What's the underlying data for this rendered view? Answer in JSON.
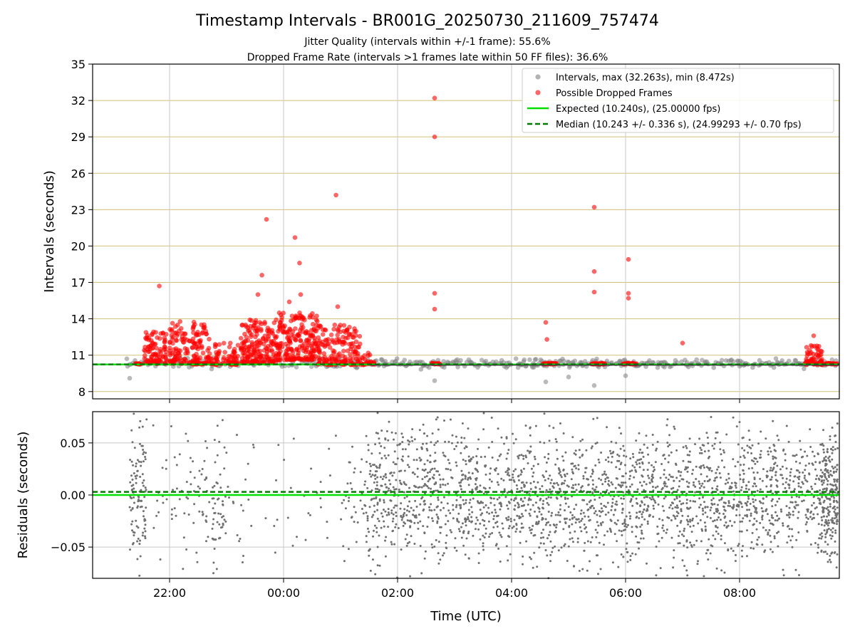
{
  "chart_data": [
    {
      "type": "scatter",
      "title": "Timestamp Intervals - BR001G_20250730_211609_757474",
      "subtitle_lines": [
        "Jitter Quality (intervals within +/-1 frame): 55.6%",
        "Dropped Frame Rate (intervals >1 frames late within 50 FF files): 36.6%"
      ],
      "xlabel": "",
      "ylabel": "Intervals (seconds)",
      "ylim": [
        7.4,
        35
      ],
      "yticks": [
        8,
        11,
        14,
        17,
        20,
        23,
        26,
        29,
        32,
        35
      ],
      "ytick_labels": [
        "8",
        "11",
        "14",
        "17",
        "20",
        "23",
        "26",
        "29",
        "32",
        "35"
      ],
      "xlim_hours_utc": [
        20.65,
        33.75
      ],
      "xticks_hours": [
        22,
        24,
        26,
        28,
        30,
        32
      ],
      "grid": "horizontal gold lines at y ticks, vertical grey lines at x ticks",
      "legend_position": "upper right",
      "legend": [
        "Intervals, max (32.263s), min (8.472s)",
        "Possible Dropped Frames",
        "Expected (10.240s), (25.00000 fps)",
        "Median (10.243 +/- 0.336 s), (24.99293 +/- 0.70 fps)"
      ],
      "lines": {
        "expected": 10.24,
        "median": 10.243
      },
      "series_summary": {
        "intervals": {
          "max": 32.263,
          "min": 8.472
        },
        "dropped_frame_outliers_hours_value": [
          [
            21.82,
            16.7
          ],
          [
            23.7,
            22.2
          ],
          [
            23.62,
            17.6
          ],
          [
            24.2,
            20.7
          ],
          [
            24.28,
            18.6
          ],
          [
            24.92,
            24.2
          ],
          [
            26.65,
            32.2
          ],
          [
            26.65,
            29.0
          ],
          [
            26.65,
            16.1
          ],
          [
            26.65,
            14.8
          ],
          [
            28.6,
            13.7
          ],
          [
            28.62,
            12.3
          ],
          [
            29.45,
            23.2
          ],
          [
            29.45,
            17.9
          ],
          [
            29.45,
            16.2
          ],
          [
            30.05,
            18.9
          ],
          [
            30.05,
            16.1
          ],
          [
            30.05,
            15.7
          ],
          [
            31.0,
            12.0
          ],
          [
            33.3,
            12.6
          ],
          [
            23.55,
            16.0
          ],
          [
            24.3,
            16.0
          ],
          [
            24.95,
            15.0
          ],
          [
            24.1,
            15.4
          ]
        ],
        "grey_low_outliers_hours_value": [
          [
            21.3,
            9.1
          ],
          [
            28.6,
            8.8
          ],
          [
            29.45,
            8.5
          ],
          [
            26.65,
            8.9
          ],
          [
            29.0,
            9.2
          ],
          [
            30.0,
            9.3
          ]
        ]
      },
      "colors": {
        "intervals": "#808080",
        "dropped": "#ff0000",
        "expected": "#00e000",
        "median": "#007a00",
        "grid_h": "#d4c178",
        "grid_v": "#c8c8c8"
      }
    },
    {
      "type": "scatter",
      "title": "",
      "xlabel": "Time (UTC)",
      "ylabel": "Residuals (seconds)",
      "ylim": [
        -0.08,
        0.08
      ],
      "yticks": [
        0.05,
        0.0,
        -0.05
      ],
      "ytick_labels": [
        "0.05",
        "0.00",
        "−0.05"
      ],
      "xticks_hours": [
        22,
        24,
        26,
        28,
        30,
        32
      ],
      "xtick_labels": [
        "22:00",
        "00:00",
        "02:00",
        "04:00",
        "06:00",
        "08:00"
      ],
      "lines": {
        "expected": 0.0,
        "median": 0.003
      },
      "residual_spread_seconds": 0.08,
      "colors": {
        "points": "#707070",
        "expected": "#00e000",
        "median": "#007a00",
        "grid": "#c8c8c8"
      }
    }
  ]
}
